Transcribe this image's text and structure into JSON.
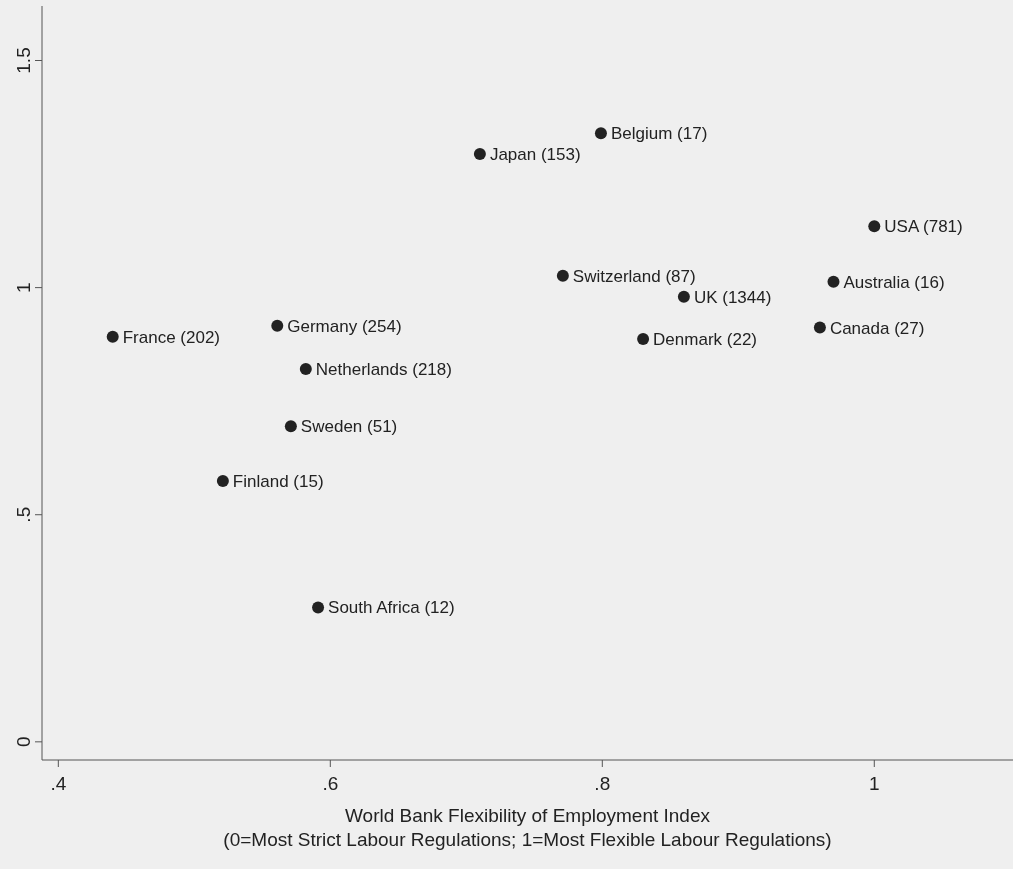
{
  "chart_data": {
    "type": "scatter",
    "xlabel": "World Bank Flexibility of Employment Index\n(0=Most Strict Labour Regulations; 1=Most Flexible Labour Regulations)",
    "x": [
      0.44,
      0.561,
      0.582,
      0.571,
      0.521,
      0.591,
      0.71,
      0.799,
      0.771,
      0.86,
      0.83,
      0.96,
      0.97,
      1.0
    ],
    "series": [
      {
        "color": "#222222",
        "values": [
          0.892,
          0.916,
          0.821,
          0.695,
          0.574,
          0.296,
          1.294,
          1.34,
          1.026,
          0.98,
          0.887,
          0.912,
          1.013,
          1.135
        ]
      }
    ],
    "annotations": [
      {
        "text": "France (202)",
        "x": 0.44,
        "y": 0.892
      },
      {
        "text": "Germany (254)",
        "x": 0.561,
        "y": 0.916
      },
      {
        "text": "Netherlands (218)",
        "x": 0.582,
        "y": 0.821
      },
      {
        "text": "Sweden (51)",
        "x": 0.571,
        "y": 0.695
      },
      {
        "text": "Finland (15)",
        "x": 0.521,
        "y": 0.574
      },
      {
        "text": "South Africa (12)",
        "x": 0.591,
        "y": 0.296
      },
      {
        "text": "Japan (153)",
        "x": 0.71,
        "y": 1.294
      },
      {
        "text": "Belgium (17)",
        "x": 0.799,
        "y": 1.34
      },
      {
        "text": "Switzerland (87)",
        "x": 0.771,
        "y": 1.026
      },
      {
        "text": "UK (1344)",
        "x": 0.86,
        "y": 0.98
      },
      {
        "text": "Denmark (22)",
        "x": 0.83,
        "y": 0.887
      },
      {
        "text": "Canada (27)",
        "x": 0.96,
        "y": 0.912
      },
      {
        "text": "Australia (16)",
        "x": 0.97,
        "y": 1.013
      },
      {
        "text": "USA (781)",
        "x": 1.0,
        "y": 1.135
      }
    ],
    "xlim": [
      0.388,
      1.102
    ],
    "ylim": [
      -0.04,
      1.62
    ],
    "xticks": [
      {
        "value": 0.4,
        "label": ".4"
      },
      {
        "value": 0.6,
        "label": ".6"
      },
      {
        "value": 0.8,
        "label": ".8"
      },
      1
    ],
    "yticks": [
      0,
      {
        "value": 0.5,
        "label": ".5"
      },
      1,
      1.5
    ],
    "marker": "circle",
    "grid": false
  }
}
